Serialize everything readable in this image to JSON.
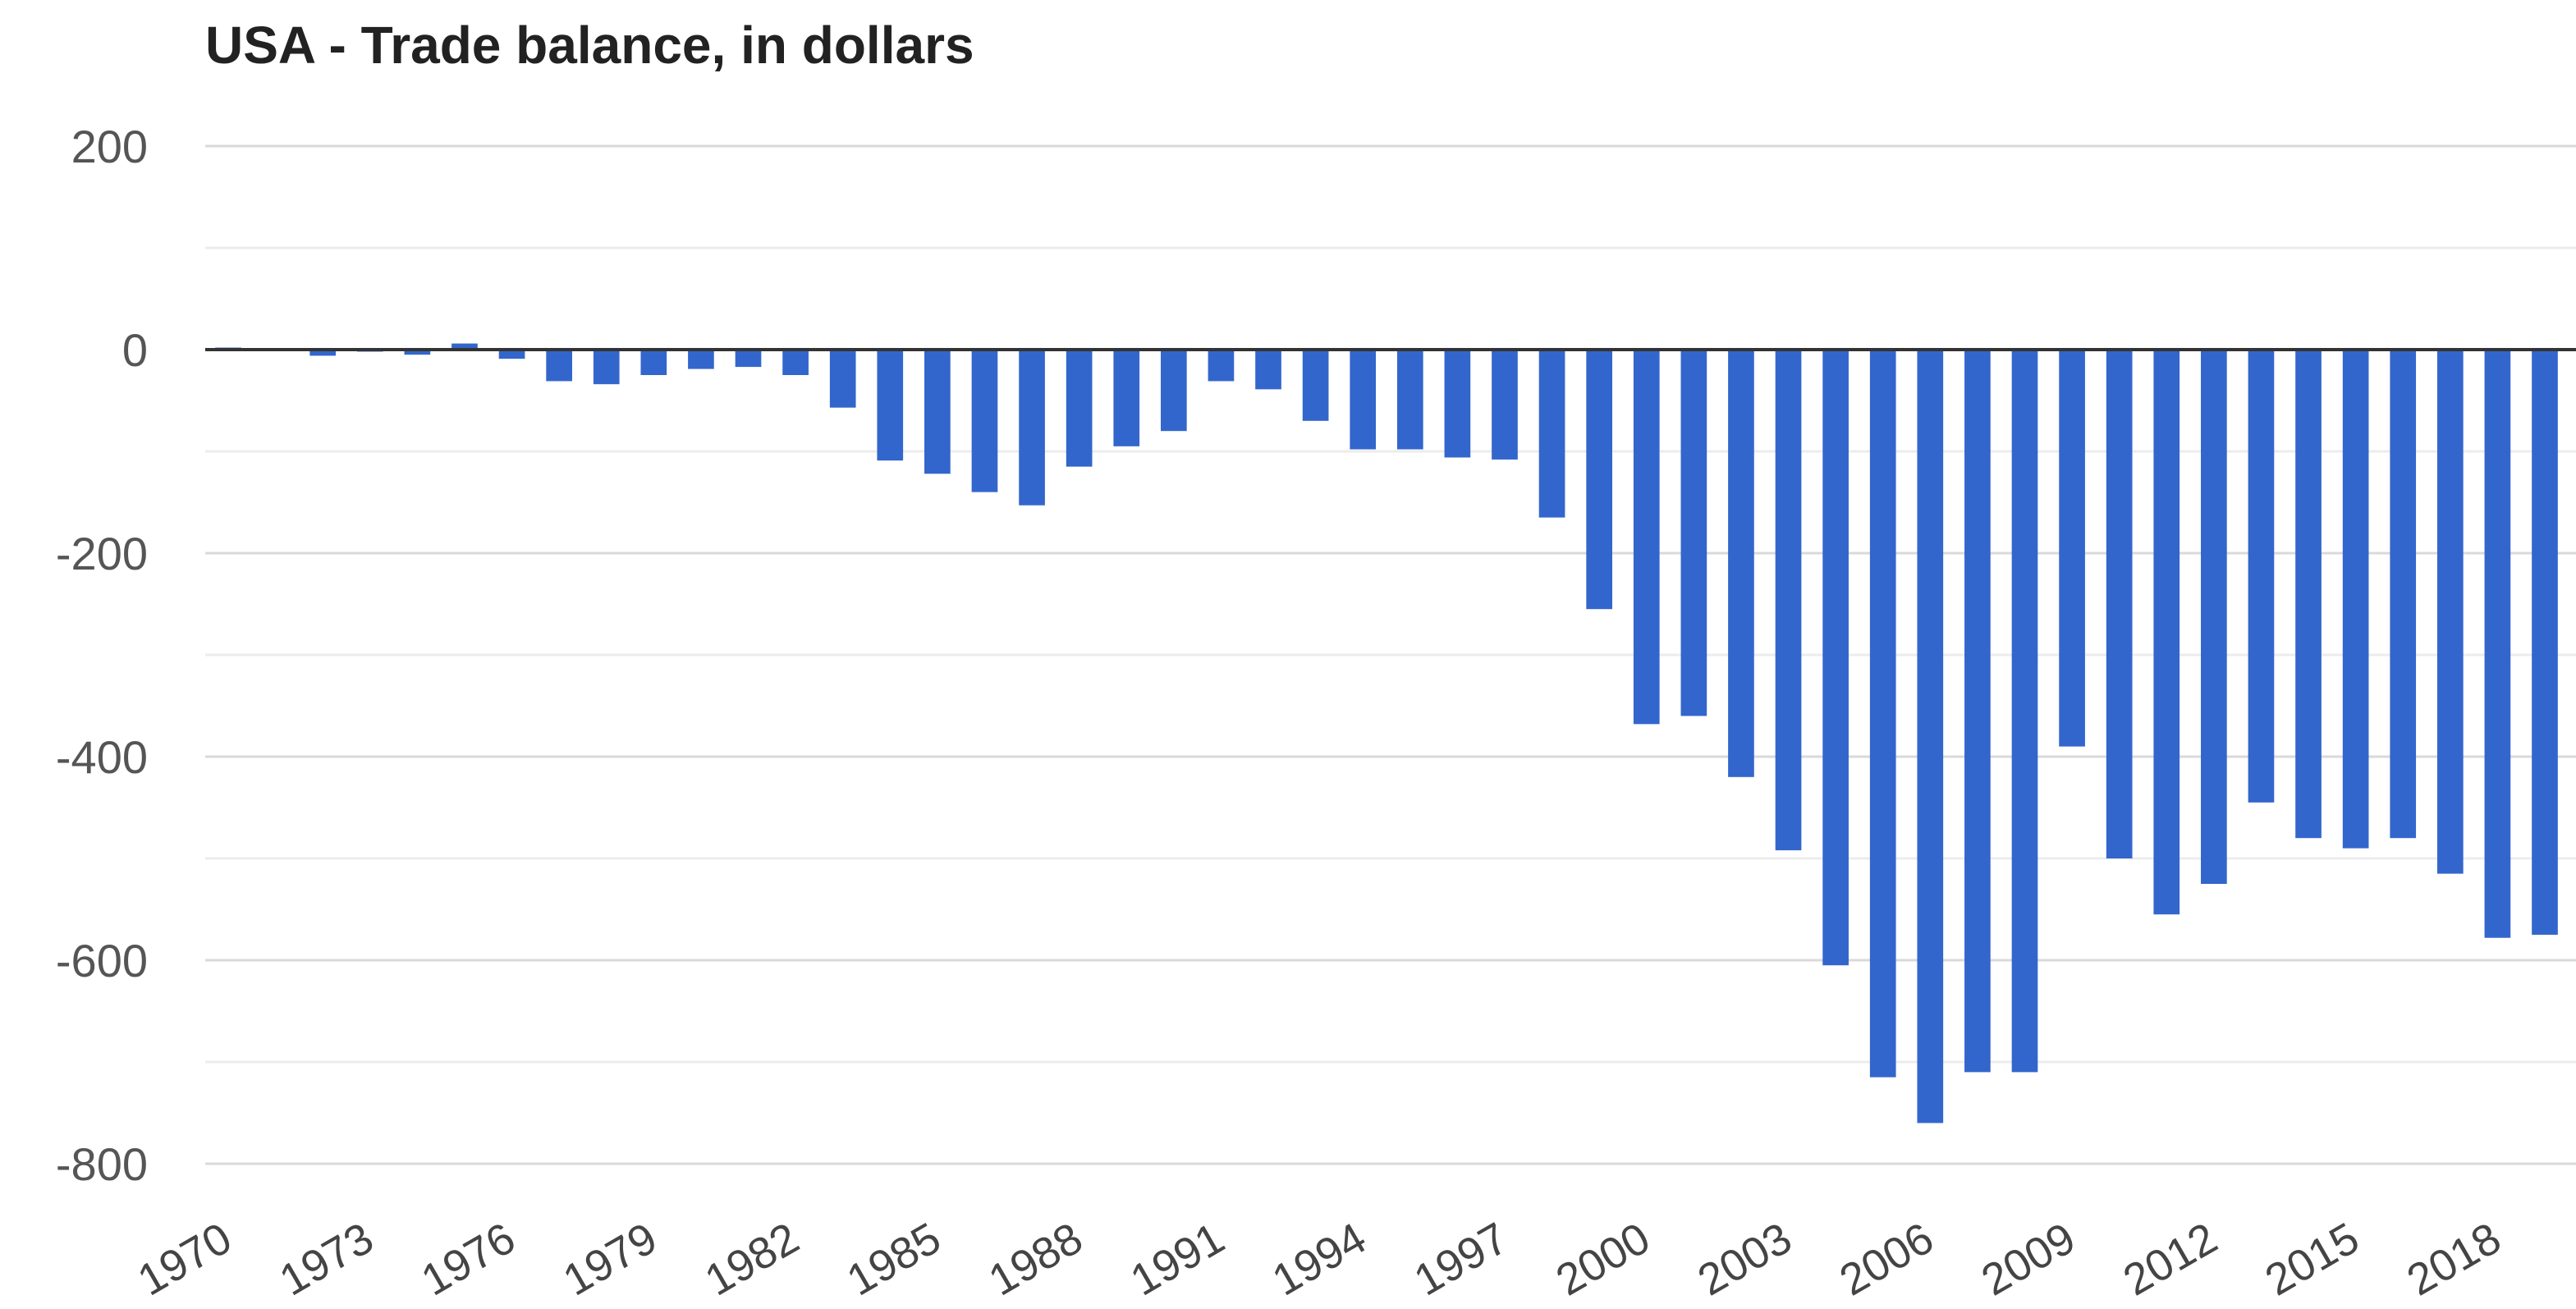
{
  "chart_data": {
    "type": "bar",
    "title": "USA - Trade balance, in dollars",
    "xlabel": "",
    "ylabel": "",
    "ylim": [
      -800,
      200
    ],
    "yticks": [
      "200",
      "0",
      "-200",
      "-400",
      "-600",
      "-800"
    ],
    "xticks": [
      "1970",
      "1973",
      "1976",
      "1979",
      "1982",
      "1985",
      "1988",
      "1991",
      "1994",
      "1997",
      "2000",
      "2003",
      "2006",
      "2009",
      "2012",
      "2015",
      "2018"
    ],
    "grid": true,
    "color": "#3366cc",
    "categories": [
      "1970",
      "1971",
      "1972",
      "1973",
      "1974",
      "1975",
      "1976",
      "1977",
      "1978",
      "1979",
      "1980",
      "1981",
      "1982",
      "1983",
      "1984",
      "1985",
      "1986",
      "1987",
      "1988",
      "1989",
      "1990",
      "1991",
      "1992",
      "1993",
      "1994",
      "1995",
      "1996",
      "1997",
      "1998",
      "1999",
      "2000",
      "2001",
      "2002",
      "2003",
      "2004",
      "2005",
      "2006",
      "2007",
      "2008",
      "2009",
      "2010",
      "2011",
      "2012",
      "2013",
      "2014",
      "2015",
      "2016",
      "2017",
      "2018",
      "2019"
    ],
    "values": [
      2,
      -1,
      -6,
      -2,
      -5,
      6,
      -9,
      -31,
      -34,
      -25,
      -19,
      -17,
      -25,
      -57,
      -109,
      -122,
      -140,
      -153,
      -115,
      -95,
      -80,
      -31,
      -39,
      -70,
      -98,
      -98,
      -106,
      -108,
      -165,
      -255,
      -368,
      -360,
      -420,
      -492,
      -605,
      -715,
      -760,
      -710,
      -710,
      -390,
      -500,
      -555,
      -525,
      -445,
      -480,
      -490,
      -480,
      -515,
      -578,
      -575
    ]
  }
}
